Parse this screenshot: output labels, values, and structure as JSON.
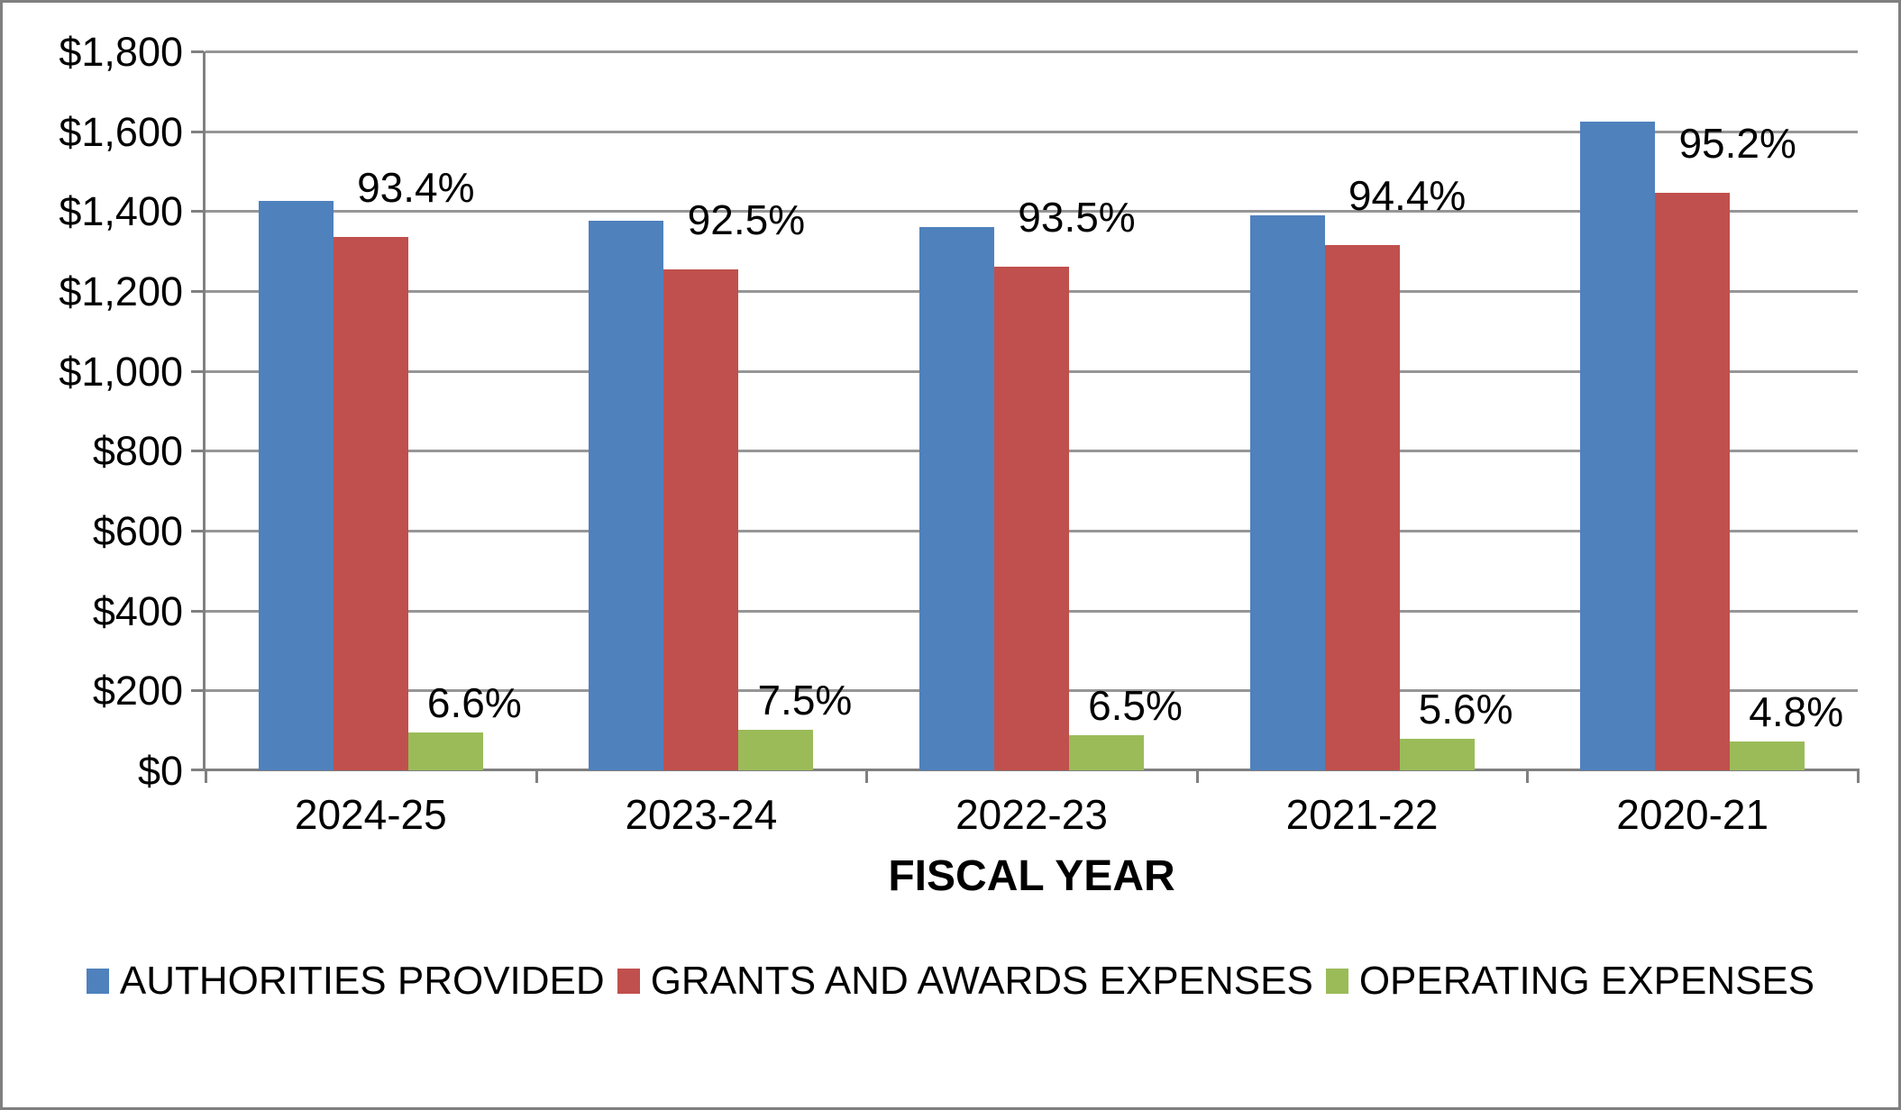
{
  "chart_data": {
    "type": "bar",
    "title": "",
    "xlabel": "FISCAL YEAR",
    "ylabel": "",
    "categories": [
      "2024-25",
      "2023-24",
      "2022-23",
      "2021-22",
      "2020-21"
    ],
    "series": [
      {
        "name": "AUTHORITIES PROVIDED",
        "color": "#4F81BD",
        "values": [
          1425,
          1375,
          1360,
          1390,
          1625
        ],
        "labels": [
          "",
          "",
          "",
          "",
          ""
        ]
      },
      {
        "name": "GRANTS AND AWARDS EXPENSES",
        "color": "#C0504D",
        "values": [
          1335,
          1255,
          1260,
          1315,
          1445
        ],
        "labels": [
          "93.4%",
          "92.5%",
          "93.5%",
          "94.4%",
          "95.2%"
        ]
      },
      {
        "name": "OPERATING EXPENSES",
        "color": "#9BBB59",
        "values": [
          94,
          102,
          88,
          78,
          73
        ],
        "labels": [
          "6.6%",
          "7.5%",
          "6.5%",
          "5.6%",
          "4.8%"
        ]
      }
    ],
    "ylim": [
      0,
      1800
    ],
    "y_tick_step": 200,
    "y_tick_labels": [
      "$0",
      "$200",
      "$400",
      "$600",
      "$800",
      "$1,000",
      "$1,200",
      "$1,400",
      "$1,600",
      "$1,800"
    ],
    "grid": true,
    "legend_position": "bottom"
  },
  "style_colors": {
    "gridline": "#969696",
    "axis": "#808080",
    "frame_border": "#7F7F7F",
    "text": "#000000",
    "background": "#FFFFFF"
  }
}
